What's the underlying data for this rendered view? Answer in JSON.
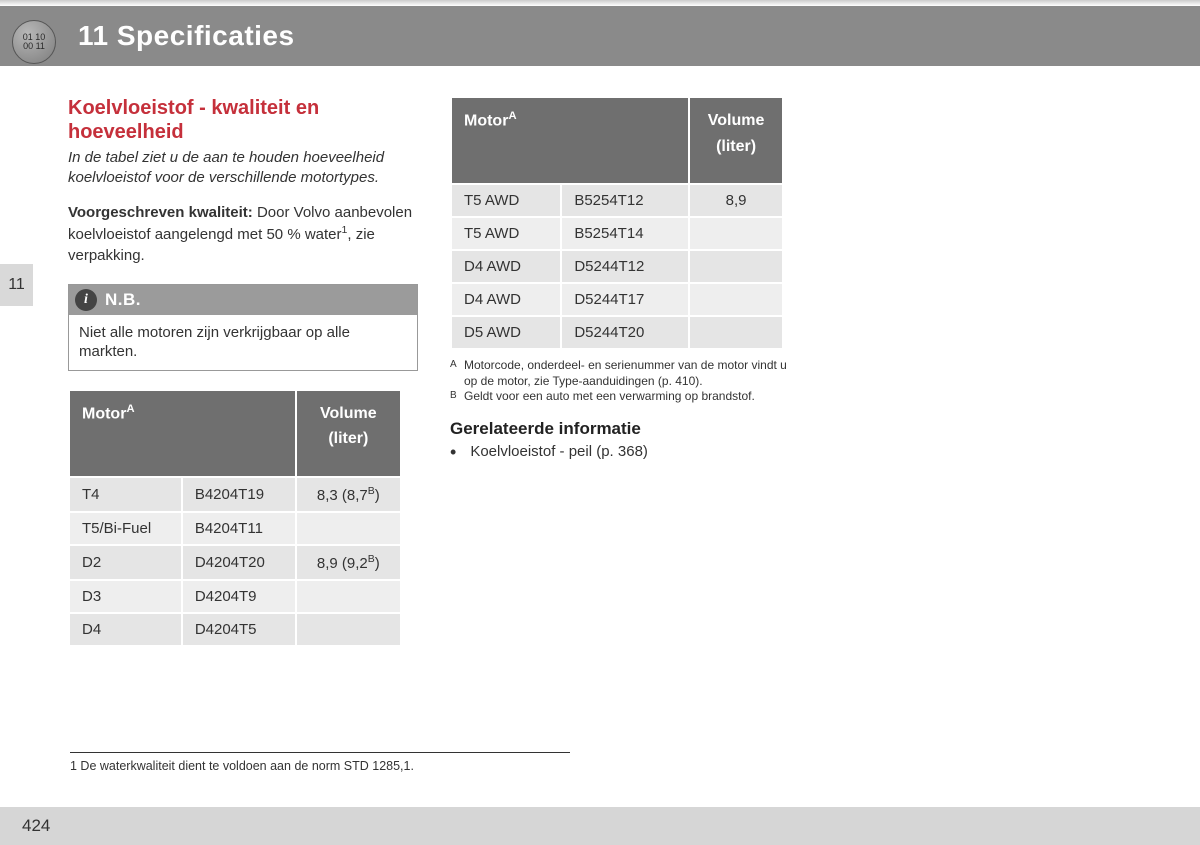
{
  "header": {
    "circle_line1": "01 10",
    "circle_line2": "00 11",
    "chapter_title": "11 Specificaties"
  },
  "side_tab": "11",
  "left": {
    "section_title": "Koelvloeistof - kwaliteit en hoeveelheid",
    "intro": "In de tabel ziet u de aan te houden hoeveelheid koelvloeistof voor de verschillende motortypes.",
    "quality_bold": "Voorgeschreven kwaliteit:",
    "quality_rest": " Door Volvo aanbevolen koelvloeistof aangelengd met 50 % water",
    "quality_sup": "1",
    "quality_tail": ", zie verpakking.",
    "nb_label": "N.B.",
    "nb_body": "Niet alle motoren zijn verkrijgbaar op alle markten.",
    "table": {
      "header_motor": "Motor",
      "header_motor_sup": "A",
      "header_volume_line1": "Volume",
      "header_volume_line2": "(liter)",
      "rows": [
        {
          "c1": "T4",
          "c2": "B4204T19",
          "vol": "8,3 (8,7",
          "vol_sup": "B",
          "vol_tail": ")"
        },
        {
          "c1": "T5/Bi-Fuel",
          "c2": "B4204T11",
          "vol": "",
          "vol_sup": "",
          "vol_tail": ""
        },
        {
          "c1": "D2",
          "c2": "D4204T20",
          "vol": "8,9 (9,2",
          "vol_sup": "B",
          "vol_tail": ")"
        },
        {
          "c1": "D3",
          "c2": "D4204T9",
          "vol": "",
          "vol_sup": "",
          "vol_tail": ""
        },
        {
          "c1": "D4",
          "c2": "D4204T5",
          "vol": "",
          "vol_sup": "",
          "vol_tail": ""
        }
      ]
    }
  },
  "right": {
    "table": {
      "header_motor": "Motor",
      "header_motor_sup": "A",
      "header_volume_line1": "Volume",
      "header_volume_line2": "(liter)",
      "rows": [
        {
          "c1": "T5 AWD",
          "c2": "B5254T12",
          "vol": "8,9"
        },
        {
          "c1": "T5 AWD",
          "c2": "B5254T14",
          "vol": ""
        },
        {
          "c1": "D4 AWD",
          "c2": "D5244T12",
          "vol": ""
        },
        {
          "c1": "D4 AWD",
          "c2": "D5244T17",
          "vol": ""
        },
        {
          "c1": "D5 AWD",
          "c2": "D5244T20",
          "vol": ""
        }
      ]
    },
    "footnotes": {
      "a_key": "A",
      "a_text": "Motorcode, onderdeel- en serienummer van de motor vindt u op de motor, zie Type-aanduidingen (p. 410).",
      "b_key": "B",
      "b_text": "Geldt voor een auto met een verwarming op brandstof."
    },
    "related_title": "Gerelateerde informatie",
    "related_item": "Koelvloeistof - peil (p. 368)"
  },
  "bottom_footnote": "1 De waterkwaliteit dient te voldoen aan de norm STD 1285,1.",
  "page_number": "424",
  "colors": {
    "header_bg": "#8a8a8a",
    "title_red": "#c5303b",
    "table_header_bg": "#6f6f6f",
    "cell_bg": "#e5e5e5",
    "footer_bg": "#d6d6d6"
  }
}
